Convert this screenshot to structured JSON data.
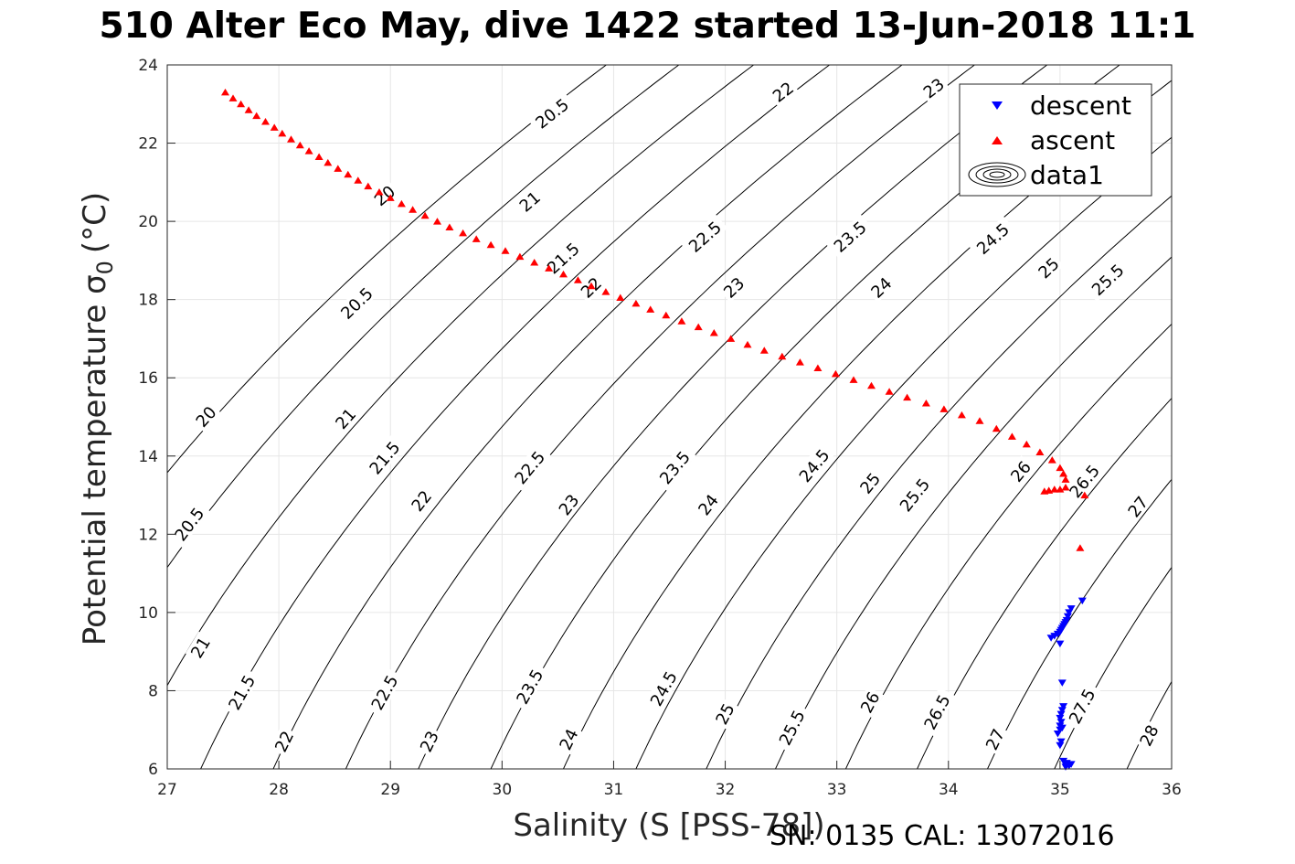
{
  "title": "510 Alter Eco May, dive 1422 started 13-Jun-2018 11:1",
  "footer": "SN: 0135  CAL: 13072016",
  "chart_data": {
    "type": "scatter",
    "xlabel": "Salinity (S [PSS-78])",
    "ylabel_main": "Potential temperature σ",
    "ylabel_sub": "0",
    "ylabel_unit": "(°C)",
    "xlim": [
      27,
      36
    ],
    "ylim": [
      6,
      24
    ],
    "xticks": [
      27,
      28,
      29,
      30,
      31,
      32,
      33,
      34,
      35,
      36
    ],
    "yticks": [
      6,
      8,
      10,
      12,
      14,
      16,
      18,
      20,
      22,
      24
    ],
    "grid": true,
    "legend_position": "top-right",
    "legend": [
      {
        "label": "descent",
        "marker": "triangle-down",
        "color": "#0000ff"
      },
      {
        "label": "ascent",
        "marker": "triangle-up",
        "color": "#ff0000"
      },
      {
        "label": "data1",
        "marker": "contour",
        "color": "#000000"
      }
    ],
    "density_contours": {
      "levels": [
        20,
        20.5,
        21,
        21.5,
        22,
        22.5,
        23,
        23.5,
        24,
        24.5,
        25,
        25.5,
        26,
        26.5,
        27,
        27.5,
        28
      ],
      "color": "#000000",
      "labels": [
        {
          "text": "20.5",
          "level": 20.5,
          "s": 30.45,
          "t": 22.75
        },
        {
          "text": "22",
          "level": 22,
          "s": 32.52,
          "t": 23.3
        },
        {
          "text": "23",
          "level": 23,
          "s": 33.87,
          "t": 23.4
        },
        {
          "text": "20",
          "level": 20,
          "s": 28.95,
          "t": 20.65
        },
        {
          "text": "21",
          "level": 21,
          "s": 30.25,
          "t": 20.5
        },
        {
          "text": "21.5",
          "level": 21.5,
          "s": 30.55,
          "t": 19.05
        },
        {
          "text": "22.5",
          "level": 22.5,
          "s": 31.82,
          "t": 19.6
        },
        {
          "text": "23.5",
          "level": 23.5,
          "s": 33.12,
          "t": 19.6
        },
        {
          "text": "24.5",
          "level": 24.5,
          "s": 34.4,
          "t": 19.55
        },
        {
          "text": "25",
          "level": 25,
          "s": 34.9,
          "t": 18.8
        },
        {
          "text": "25.5",
          "level": 25.5,
          "s": 35.43,
          "t": 18.5
        },
        {
          "text": "22",
          "level": 22,
          "s": 30.8,
          "t": 18.3
        },
        {
          "text": "23",
          "level": 23,
          "s": 32.08,
          "t": 18.3
        },
        {
          "text": "24",
          "level": 24,
          "s": 33.4,
          "t": 18.3
        },
        {
          "text": "20.5",
          "level": 20.5,
          "s": 28.7,
          "t": 17.9
        },
        {
          "text": "20",
          "level": 20,
          "s": 27.35,
          "t": 15.0
        },
        {
          "text": "21",
          "level": 21,
          "s": 28.6,
          "t": 14.95
        },
        {
          "text": "21.5",
          "level": 21.5,
          "s": 28.95,
          "t": 13.95
        },
        {
          "text": "22.5",
          "level": 22.5,
          "s": 30.25,
          "t": 13.7
        },
        {
          "text": "23.5",
          "level": 23.5,
          "s": 31.55,
          "t": 13.7
        },
        {
          "text": "24.5",
          "level": 24.5,
          "s": 32.8,
          "t": 13.75
        },
        {
          "text": "25",
          "level": 25,
          "s": 33.3,
          "t": 13.3
        },
        {
          "text": "25.5",
          "level": 25.5,
          "s": 33.7,
          "t": 13.0
        },
        {
          "text": "26",
          "level": 26,
          "s": 34.65,
          "t": 13.6
        },
        {
          "text": "26.5",
          "level": 26.5,
          "s": 35.22,
          "t": 13.35
        },
        {
          "text": "22",
          "level": 22,
          "s": 29.28,
          "t": 12.85
        },
        {
          "text": "23",
          "level": 23,
          "s": 30.6,
          "t": 12.75
        },
        {
          "text": "24",
          "level": 24,
          "s": 31.85,
          "t": 12.75
        },
        {
          "text": "27",
          "level": 27,
          "s": 35.7,
          "t": 12.7
        },
        {
          "text": "20.5",
          "level": 20.5,
          "s": 27.2,
          "t": 12.25
        },
        {
          "text": "21",
          "level": 21,
          "s": 27.3,
          "t": 9.1
        },
        {
          "text": "21.5",
          "level": 21.5,
          "s": 27.67,
          "t": 7.95
        },
        {
          "text": "22.5",
          "level": 22.5,
          "s": 28.95,
          "t": 7.95
        },
        {
          "text": "23.5",
          "level": 23.5,
          "s": 30.25,
          "t": 8.1
        },
        {
          "text": "24.5",
          "level": 24.5,
          "s": 31.45,
          "t": 8.05
        },
        {
          "text": "25",
          "level": 25,
          "s": 32.0,
          "t": 7.4
        },
        {
          "text": "25.5",
          "level": 25.5,
          "s": 32.6,
          "t": 7.05
        },
        {
          "text": "26",
          "level": 26,
          "s": 33.3,
          "t": 7.7
        },
        {
          "text": "26.5",
          "level": 26.5,
          "s": 33.9,
          "t": 7.45
        },
        {
          "text": "27.5",
          "level": 27.5,
          "s": 35.2,
          "t": 7.6
        },
        {
          "text": "22",
          "level": 22,
          "s": 28.05,
          "t": 6.7
        },
        {
          "text": "23",
          "level": 23,
          "s": 29.35,
          "t": 6.7
        },
        {
          "text": "24",
          "level": 24,
          "s": 30.6,
          "t": 6.75
        },
        {
          "text": "27",
          "level": 27,
          "s": 34.42,
          "t": 6.75
        },
        {
          "text": "28",
          "level": 28,
          "s": 35.8,
          "t": 6.85
        }
      ]
    },
    "series": [
      {
        "name": "descent",
        "color": "#0000ff",
        "marker": "triangle-down",
        "x": [
          35.1,
          35.08,
          35.07,
          35.06,
          35.05,
          35.04,
          35.03,
          35.02,
          35.01,
          35.0,
          34.98,
          34.95,
          34.92,
          35.0,
          35.2,
          35.02,
          35.03,
          35.02,
          35.01,
          35.0,
          35.01,
          35.0,
          34.98,
          35.01,
          35.0,
          35.03,
          35.06,
          35.05,
          35.08,
          35.1,
          35.06,
          35.0,
          35.02
        ],
        "y": [
          10.1,
          10.0,
          9.9,
          9.8,
          9.75,
          9.7,
          9.65,
          9.6,
          9.55,
          9.5,
          9.45,
          9.4,
          9.35,
          9.2,
          10.3,
          8.2,
          7.6,
          7.5,
          7.4,
          7.3,
          7.2,
          7.1,
          6.9,
          6.7,
          7.0,
          6.2,
          6.1,
          6.05,
          6.08,
          6.12,
          6.15,
          6.6,
          7.05
        ]
      },
      {
        "name": "ascent",
        "color": "#ff0000",
        "marker": "triangle-up",
        "x": [
          27.52,
          27.59,
          27.66,
          27.73,
          27.8,
          27.88,
          27.96,
          28.03,
          28.11,
          28.19,
          28.27,
          28.36,
          28.44,
          28.53,
          28.62,
          28.71,
          28.8,
          28.9,
          29.0,
          29.1,
          29.2,
          29.31,
          29.42,
          29.53,
          29.65,
          29.77,
          29.9,
          30.03,
          30.16,
          30.29,
          30.42,
          30.55,
          30.68,
          30.8,
          30.93,
          31.06,
          31.2,
          31.33,
          31.47,
          31.61,
          31.76,
          31.9,
          32.05,
          32.2,
          32.35,
          32.51,
          32.67,
          32.83,
          32.99,
          33.15,
          33.31,
          33.47,
          33.63,
          33.8,
          33.96,
          34.12,
          34.28,
          34.43,
          34.57,
          34.7,
          34.82,
          34.93,
          35.0,
          35.03,
          35.05,
          34.86,
          34.9,
          34.95,
          35.0,
          35.05,
          35.22,
          35.18
        ],
        "y": [
          23.3,
          23.15,
          23.0,
          22.85,
          22.7,
          22.55,
          22.4,
          22.25,
          22.1,
          21.95,
          21.8,
          21.65,
          21.5,
          21.35,
          21.2,
          21.05,
          20.9,
          20.75,
          20.6,
          20.45,
          20.3,
          20.15,
          20.0,
          19.85,
          19.7,
          19.55,
          19.4,
          19.25,
          19.1,
          18.95,
          18.8,
          18.65,
          18.5,
          18.35,
          18.2,
          18.05,
          17.9,
          17.75,
          17.6,
          17.45,
          17.3,
          17.15,
          17.0,
          16.85,
          16.7,
          16.55,
          16.4,
          16.25,
          16.1,
          15.95,
          15.8,
          15.65,
          15.5,
          15.35,
          15.2,
          15.05,
          14.9,
          14.7,
          14.5,
          14.3,
          14.1,
          13.9,
          13.7,
          13.55,
          13.4,
          13.1,
          13.12,
          13.15,
          13.15,
          13.2,
          13.0,
          11.65
        ]
      }
    ]
  }
}
